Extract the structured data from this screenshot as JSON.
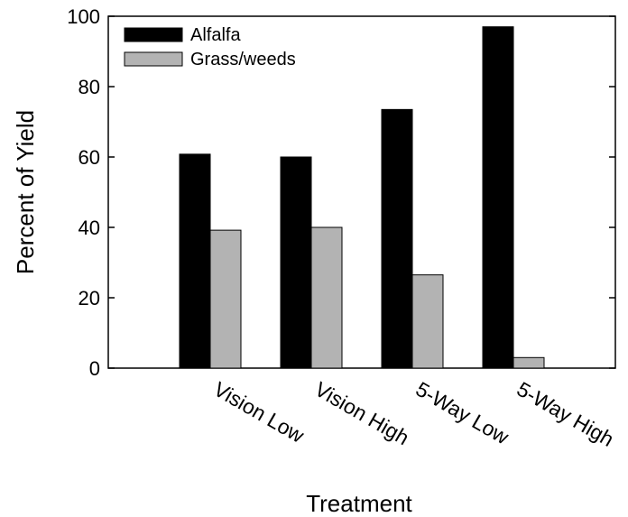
{
  "chart_data": {
    "type": "bar",
    "title": "",
    "xlabel": "Treatment",
    "ylabel": "Percent of Yield",
    "categories": [
      "Vision Low",
      "Vision High",
      "5-Way Low",
      "5-Way High"
    ],
    "series": [
      {
        "name": "Alfalfa",
        "values": [
          60.8,
          60.0,
          73.5,
          97.0
        ],
        "color": "#000000"
      },
      {
        "name": "Grass/weeds",
        "values": [
          39.2,
          40.0,
          26.5,
          3.0
        ],
        "color": "#b3b3b3"
      }
    ],
    "ylim": [
      0,
      100
    ],
    "yticks": [
      "0",
      "20",
      "40",
      "60",
      "80",
      "100"
    ],
    "grid": false,
    "legend_position": "top-left"
  }
}
